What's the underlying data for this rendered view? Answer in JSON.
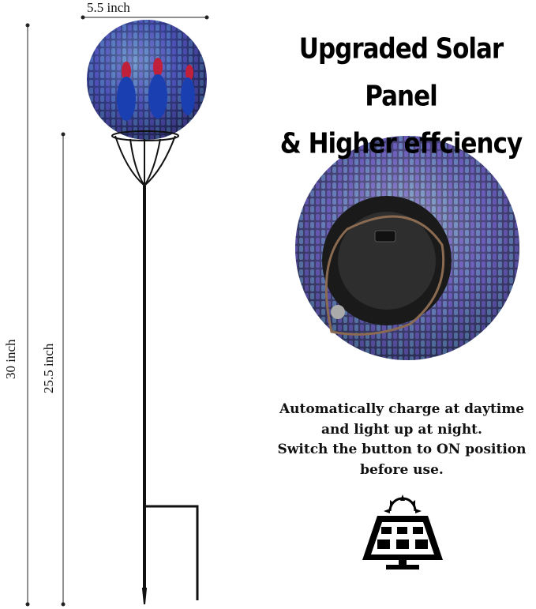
{
  "dimensions": {
    "width_label": "5.5 inch",
    "total_height_label": "30 inch",
    "stake_height_label": "25.5 inch"
  },
  "headline": {
    "line1": "Upgraded Solar Panel",
    "line2": "& Higher effciency"
  },
  "description": {
    "line1": "Automatically charge at daytime",
    "line2": "and light up at night.",
    "line3": "Switch the button to ON position",
    "line4": "before use."
  },
  "icons": {
    "solar": "solar-panel-icon"
  },
  "colors": {
    "mosaic_blue": "#2c4fb8",
    "mosaic_purple": "#7a4fd0",
    "mosaic_teal": "#4fb7b0",
    "accent_red": "#c0203a",
    "metal": "#111111"
  }
}
